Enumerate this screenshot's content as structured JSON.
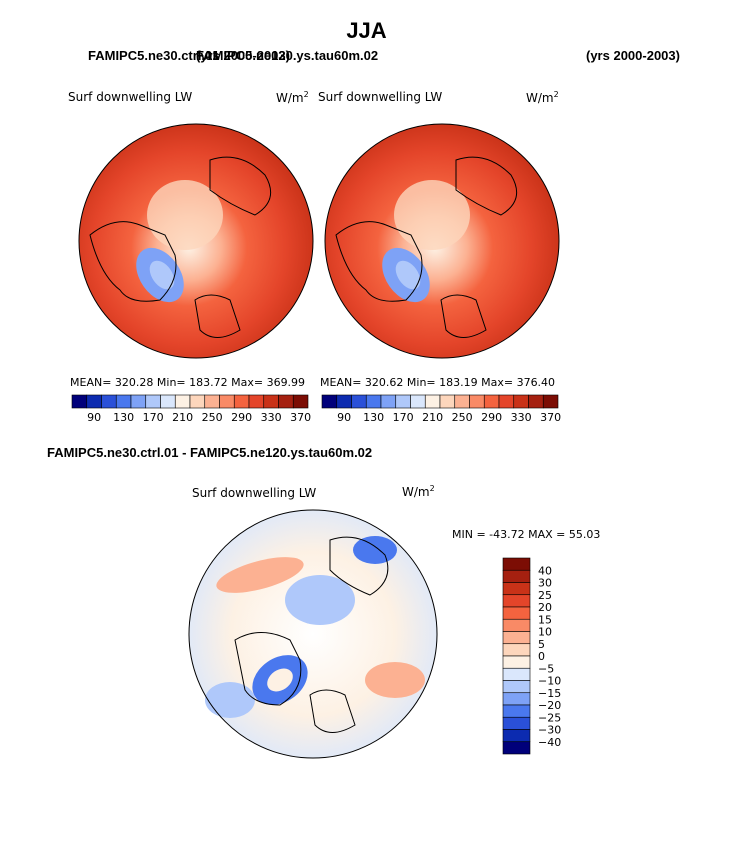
{
  "page": {
    "title": "JJA",
    "case_left": "FAMIPC5.ne30.ctrl.01",
    "case_left_years": "(yrs 2000-2003)",
    "case_right": "FAMIPC5.ne120.ys.tau60m.02",
    "case_right_years": "(yrs 2000-2003)",
    "diff_heading": "FAMIPC5.ne30.ctrl.01 - FAMIPC5.ne120.ys.tau60m.02"
  },
  "chart_data": [
    {
      "type": "heatmap",
      "id": "left",
      "title": "Surf downwelling LW",
      "units_label": "W/m",
      "units_sup": "2",
      "stats": "MEAN= 320.28   Min= 183.72   Max= 369.99",
      "colorbar": {
        "ticks": [
          "90",
          "130",
          "170",
          "210",
          "250",
          "290",
          "330",
          "370"
        ],
        "colors": [
          "#00007a",
          "#0c2bb0",
          "#2a50d8",
          "#4a78ee",
          "#7ea2f6",
          "#afc8fa",
          "#dae7fc",
          "#fdf1e4",
          "#fdd6bc",
          "#fcb192",
          "#f98a66",
          "#f4633f",
          "#e4452a",
          "#c93218",
          "#a52010",
          "#7c0d04"
        ]
      }
    },
    {
      "type": "heatmap",
      "id": "right",
      "title": "Surf downwelling LW",
      "units_label": "W/m",
      "units_sup": "2",
      "stats": "MEAN= 320.62   Min= 183.19   Max= 376.40",
      "colorbar": {
        "ticks": [
          "90",
          "130",
          "170",
          "210",
          "250",
          "290",
          "330",
          "370"
        ],
        "colors": [
          "#00007a",
          "#0c2bb0",
          "#2a50d8",
          "#4a78ee",
          "#7ea2f6",
          "#afc8fa",
          "#dae7fc",
          "#fdf1e4",
          "#fdd6bc",
          "#fcb192",
          "#f98a66",
          "#f4633f",
          "#e4452a",
          "#c93218",
          "#a52010",
          "#7c0d04"
        ]
      }
    },
    {
      "type": "heatmap",
      "id": "diff",
      "title": "Surf downwelling LW",
      "units_label": "W/m",
      "units_sup": "2",
      "stats": "MIN = -43.72  MAX =  55.03",
      "colorbar": {
        "ticks": [
          "40",
          "30",
          "25",
          "20",
          "15",
          "10",
          "5",
          "0",
          "−5",
          "−10",
          "−15",
          "−20",
          "−25",
          "−30",
          "−40"
        ],
        "colors": [
          "#7c0d04",
          "#a52010",
          "#c93218",
          "#e4452a",
          "#f4633f",
          "#f98a66",
          "#fcb192",
          "#fdd6bc",
          "#fdf1e4",
          "#dae7fc",
          "#afc8fa",
          "#7ea2f6",
          "#4a78ee",
          "#2a50d8",
          "#0c2bb0",
          "#00007a"
        ]
      }
    }
  ]
}
